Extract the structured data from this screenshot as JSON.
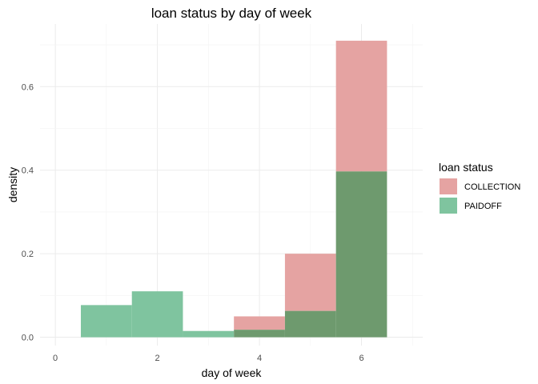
{
  "chart_data": {
    "type": "bar",
    "title": "loan status by day of week",
    "xlabel": "day of week",
    "ylabel": "density",
    "xlim": [
      -0.3,
      7.2
    ],
    "ylim": [
      -0.02,
      0.75
    ],
    "xticks": [
      0,
      2,
      4,
      6
    ],
    "xtick_labels": [
      "0",
      "2",
      "4",
      "6"
    ],
    "yticks": [
      0.0,
      0.2,
      0.4,
      0.6
    ],
    "ytick_labels": [
      "0.0",
      "0.2",
      "0.4",
      "0.6"
    ],
    "grid": true,
    "legend": {
      "title": "loan status",
      "position": "right"
    },
    "bins": [
      {
        "from": 0.5,
        "to": 1.5
      },
      {
        "from": 1.5,
        "to": 2.5
      },
      {
        "from": 2.5,
        "to": 3.5
      },
      {
        "from": 3.5,
        "to": 4.5
      },
      {
        "from": 4.5,
        "to": 5.5
      },
      {
        "from": 5.5,
        "to": 6.5
      }
    ],
    "series": [
      {
        "name": "COLLECTION",
        "color": "#E5A3A2",
        "values": [
          0.0,
          0.0,
          0.0,
          0.05,
          0.2,
          0.71
        ]
      },
      {
        "name": "PAIDOFF",
        "color": "#7FC49F",
        "values": [
          0.077,
          0.11,
          0.015,
          0.018,
          0.063,
          0.397
        ]
      }
    ],
    "overlap_color": "#6E9A6E"
  }
}
